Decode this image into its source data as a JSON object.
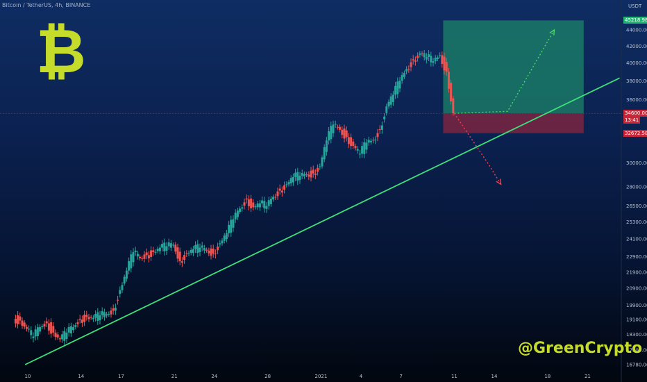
{
  "header": {
    "symbol_line": "Bitcoin / TetherUS, 4h, BINANCE"
  },
  "logo": {
    "glyph": "₿",
    "color": "#c6dc2a"
  },
  "watermark": {
    "text": "@GreenCrypto",
    "color": "#c6dc2a"
  },
  "price_axis": {
    "unit": "USDT",
    "ticks": [
      {
        "label": "44000.00",
        "value": 44000
      },
      {
        "label": "42000.00",
        "value": 42000
      },
      {
        "label": "40000.00",
        "value": 40000
      },
      {
        "label": "38000.00",
        "value": 38000
      },
      {
        "label": "36000.00",
        "value": 36000
      },
      {
        "label": "30000.00",
        "value": 30000
      },
      {
        "label": "28000.00",
        "value": 28000
      },
      {
        "label": "26500.00",
        "value": 26500
      },
      {
        "label": "25300.00",
        "value": 25300
      },
      {
        "label": "24100.00",
        "value": 24100
      },
      {
        "label": "22900.00",
        "value": 22900
      },
      {
        "label": "21900.00",
        "value": 21900
      },
      {
        "label": "20900.00",
        "value": 20900
      },
      {
        "label": "19900.00",
        "value": 19900
      },
      {
        "label": "19100.00",
        "value": 19100
      },
      {
        "label": "18300.00",
        "value": 18300
      },
      {
        "label": "17500.00",
        "value": 17500
      },
      {
        "label": "16780.00",
        "value": 16780
      }
    ],
    "tags": [
      {
        "label": "45218.98",
        "value": 45218.98,
        "bg": "#22b573",
        "fg": "#ffffff"
      },
      {
        "label": "34600.00",
        "value": 34600,
        "bg": "#c6283a",
        "fg": "#ffffff"
      },
      {
        "label": "13:41",
        "value": 33900,
        "bg": "#c6283a",
        "fg": "#ffffff"
      },
      {
        "label": "32672.58",
        "value": 32672.58,
        "bg": "#c6283a",
        "fg": "#ffffff"
      }
    ]
  },
  "time_axis": {
    "ticks": [
      {
        "label": "10",
        "t": 0
      },
      {
        "label": "14",
        "t": 4
      },
      {
        "label": "17",
        "t": 7
      },
      {
        "label": "21",
        "t": 11
      },
      {
        "label": "24",
        "t": 14
      },
      {
        "label": "28",
        "t": 18
      },
      {
        "label": "2021",
        "t": 22
      },
      {
        "label": "4",
        "t": 25
      },
      {
        "label": "7",
        "t": 28
      },
      {
        "label": "11",
        "t": 32
      },
      {
        "label": "14",
        "t": 35
      },
      {
        "label": "18",
        "t": 39
      },
      {
        "label": "21",
        "t": 42
      }
    ]
  },
  "colors": {
    "up": "#26a69a",
    "down": "#ef5350",
    "trendline": "#3ee07a",
    "target_zone": "#1d8a6a",
    "stop_zone": "#8a2540",
    "target_arrow": "#4cd964",
    "stop_arrow": "#ff3b4a"
  },
  "chart_data": {
    "type": "candlestick",
    "title": "Bitcoin / TetherUS, 4h, BINANCE",
    "y_unit": "USDT",
    "y_scale": "log",
    "ylim": [
      16500,
      46000
    ],
    "x_unit": "days (Dec 10 = 0)",
    "xlim": [
      -1,
      44
    ],
    "closes": [
      [
        -1,
        19150
      ],
      [
        -0.5,
        19050
      ],
      [
        0,
        18600
      ],
      [
        0.5,
        18200
      ],
      [
        1,
        18700
      ],
      [
        1.5,
        18900
      ],
      [
        2,
        18400
      ],
      [
        2.5,
        18050
      ],
      [
        3,
        18400
      ],
      [
        3.5,
        18700
      ],
      [
        4,
        19100
      ],
      [
        4.5,
        19250
      ],
      [
        5,
        19200
      ],
      [
        5.5,
        19350
      ],
      [
        6,
        19400
      ],
      [
        6.5,
        19600
      ],
      [
        7,
        20800
      ],
      [
        7.5,
        22000
      ],
      [
        8,
        23200
      ],
      [
        8.5,
        22800
      ],
      [
        9,
        23000
      ],
      [
        9.5,
        23200
      ],
      [
        10,
        23500
      ],
      [
        10.5,
        23600
      ],
      [
        11,
        23700
      ],
      [
        11.5,
        22600
      ],
      [
        12,
        23100
      ],
      [
        12.5,
        23400
      ],
      [
        13,
        23500
      ],
      [
        13.5,
        23300
      ],
      [
        14,
        23100
      ],
      [
        14.5,
        23800
      ],
      [
        15,
        24500
      ],
      [
        15.5,
        25500
      ],
      [
        16,
        26300
      ],
      [
        16.5,
        27000
      ],
      [
        17,
        26400
      ],
      [
        17.5,
        26700
      ],
      [
        18,
        26500
      ],
      [
        18.5,
        27200
      ],
      [
        19,
        27700
      ],
      [
        19.5,
        28200
      ],
      [
        20,
        28800
      ],
      [
        20.5,
        28900
      ],
      [
        21,
        29000
      ],
      [
        21.5,
        29100
      ],
      [
        22,
        29700
      ],
      [
        22.5,
        32000
      ],
      [
        23,
        33500
      ],
      [
        23.5,
        33000
      ],
      [
        24,
        32300
      ],
      [
        24.5,
        31500
      ],
      [
        25,
        30800
      ],
      [
        25.5,
        31800
      ],
      [
        26,
        32000
      ],
      [
        26.5,
        33000
      ],
      [
        27,
        35300
      ],
      [
        27.5,
        36500
      ],
      [
        28,
        38000
      ],
      [
        28.5,
        39300
      ],
      [
        29,
        40300
      ],
      [
        29.5,
        41100
      ],
      [
        30,
        40700
      ],
      [
        30.5,
        40200
      ],
      [
        31,
        40900
      ],
      [
        31.5,
        39000
      ],
      [
        32,
        34600
      ]
    ],
    "trendline": [
      [
        -0.2,
        16780
      ],
      [
        44.4,
        38300
      ]
    ],
    "position": {
      "entry": 34600,
      "target": 45218.98,
      "stop": 32672.58,
      "t_start": 32,
      "t_end": 41.5
    },
    "projection_up": [
      [
        32,
        34600
      ],
      [
        36,
        34800
      ],
      [
        39.5,
        44000
      ]
    ],
    "projection_down": [
      [
        32,
        34600
      ],
      [
        34.5,
        30000
      ],
      [
        35.5,
        28200
      ]
    ],
    "current_price": 34600
  }
}
